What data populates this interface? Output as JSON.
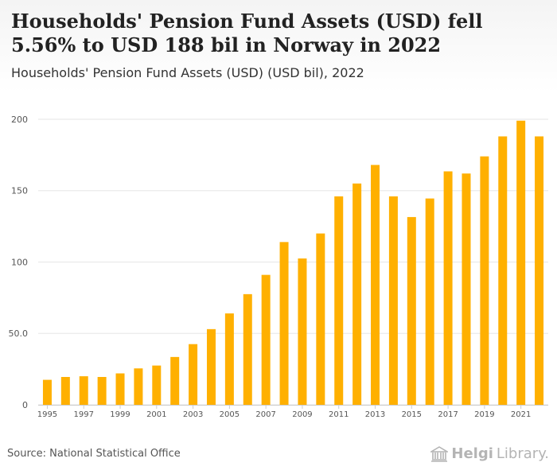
{
  "header": {
    "title": "Households' Pension Fund Assets (USD) fell 5.56% to USD 188 bil in Norway in 2022",
    "subtitle": "Households' Pension Fund Assets (USD) (USD bil), 2022"
  },
  "footer": {
    "source": "Source: National Statistical Office",
    "logo_brand": "Helgi",
    "logo_suffix": "Library."
  },
  "colors": {
    "bar": "#ffb000",
    "grid": "#e6e6e6",
    "axis_text": "#555555"
  },
  "chart_data": {
    "type": "bar",
    "title": "Households' Pension Fund Assets (USD) (USD bil), 2022",
    "xlabel": "",
    "ylabel": "",
    "categories": [
      "1995",
      "1996",
      "1997",
      "1998",
      "1999",
      "2000",
      "2001",
      "2002",
      "2003",
      "2004",
      "2005",
      "2006",
      "2007",
      "2008",
      "2009",
      "2010",
      "2011",
      "2012",
      "2013",
      "2014",
      "2015",
      "2016",
      "2017",
      "2018",
      "2019",
      "2020",
      "2021",
      "2022"
    ],
    "values": [
      17.5,
      19.5,
      20,
      19.5,
      22,
      25.5,
      27.5,
      33.5,
      42.5,
      53,
      64,
      77.5,
      91,
      114,
      102.5,
      120,
      146,
      155,
      168,
      146,
      131.5,
      144.5,
      163.5,
      162,
      174,
      188,
      199,
      188
    ],
    "x_tick_labels": [
      "1995",
      "1997",
      "1999",
      "2001",
      "2003",
      "2005",
      "2007",
      "2009",
      "2011",
      "2013",
      "2015",
      "2017",
      "2019",
      "2021"
    ],
    "y_ticks": [
      0,
      50,
      100,
      150,
      200
    ],
    "y_tick_labels": [
      "0",
      "50.0",
      "100",
      "150",
      "200"
    ],
    "ylim": [
      0,
      210
    ],
    "grid": true,
    "legend": "none"
  }
}
